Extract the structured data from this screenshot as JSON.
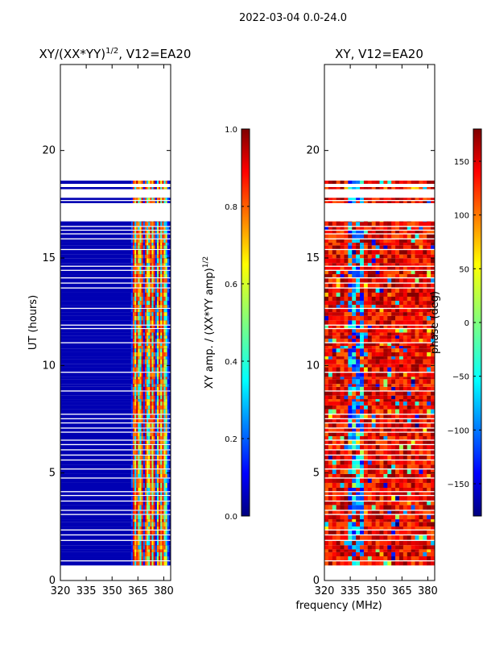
{
  "figure": {
    "suptitle": "2022-03-04 0.0-24.0",
    "xlabel": "frequency (MHz)"
  },
  "colors": {
    "jet": [
      "#00007f",
      "#0000ff",
      "#007fff",
      "#00ffff",
      "#7fff7f",
      "#ffff00",
      "#ff7f00",
      "#ff0000",
      "#7f0000"
    ],
    "background": "#ffffff",
    "gap": "#ffffff"
  },
  "chart_data": [
    {
      "type": "heatmap",
      "title_base": "XY/(XX*YY)",
      "title_exp": "1/2",
      "title_suffix": ", V12=EA20",
      "ylabel": "UT (hours)",
      "xlim": [
        320,
        384
      ],
      "ylim": [
        0,
        24
      ],
      "xticks": [
        "320",
        "335",
        "350",
        "365",
        "380"
      ],
      "xtick_values": [
        320,
        335,
        350,
        365,
        380
      ],
      "yticks": [
        "0",
        "5",
        "10",
        "15",
        "20"
      ],
      "ytick_values": [
        0,
        5,
        10,
        15,
        20
      ],
      "colorbar": {
        "range": [
          0.0,
          1.0
        ],
        "ticks": [
          "0.0",
          "0.2",
          "0.4",
          "0.6",
          "0.8",
          "1.0"
        ],
        "tick_values": [
          0.0,
          0.2,
          0.4,
          0.6,
          0.8,
          1.0
        ],
        "label_base": "XY amp. / (XX*YY amp)",
        "label_exp": "1/2"
      },
      "data_extent_hours": [
        0.7,
        18.6
      ],
      "bright_band_mhz": [
        361,
        383
      ],
      "typical_value_low": 0.05,
      "typical_value_band": 0.55
    },
    {
      "type": "heatmap",
      "title": "XY, V12=EA20",
      "xlim": [
        320,
        384
      ],
      "ylim": [
        0,
        24
      ],
      "xticks": [
        "320",
        "335",
        "350",
        "365",
        "380"
      ],
      "xtick_values": [
        320,
        335,
        350,
        365,
        380
      ],
      "yticks": [
        "0",
        "5",
        "10",
        "15",
        "20"
      ],
      "ytick_values": [
        0,
        5,
        10,
        15,
        20
      ],
      "colorbar": {
        "range": [
          -180,
          180
        ],
        "ticks": [
          "−150",
          "−100",
          "−50",
          "0",
          "50",
          "100",
          "150"
        ],
        "tick_values": [
          -150,
          -100,
          -50,
          0,
          50,
          100,
          150
        ],
        "label": "phase (deg)"
      },
      "data_extent_hours": [
        0.7,
        18.6
      ],
      "typical_value_deg": 140
    }
  ]
}
